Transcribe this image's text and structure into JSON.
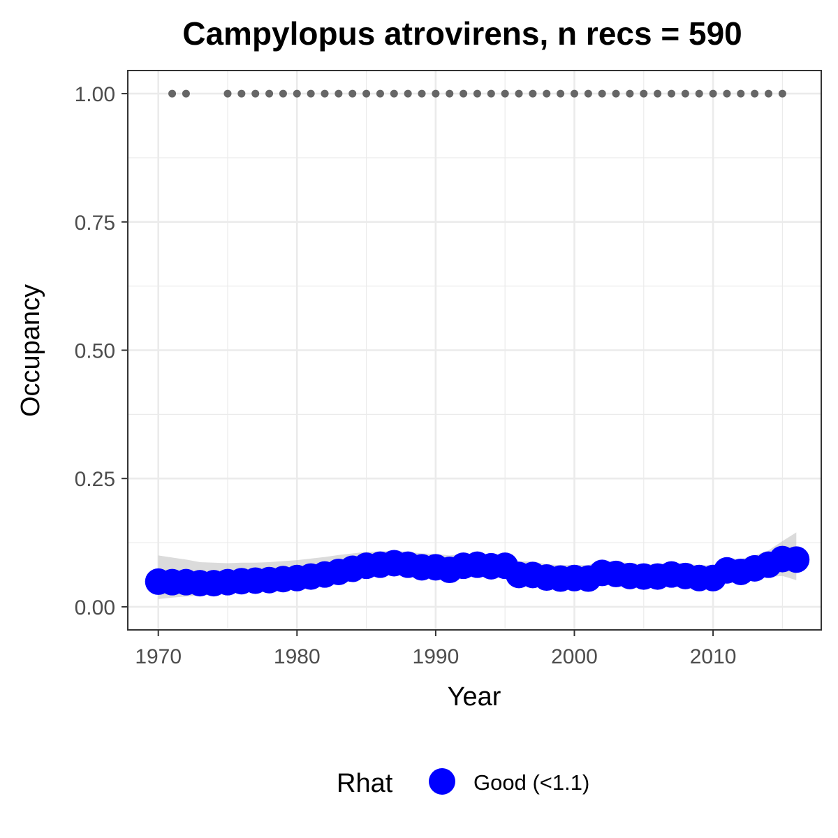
{
  "chart_data": {
    "type": "line",
    "title": "Campylopus atrovirens, n recs = 590",
    "xlabel": "Year",
    "ylabel": "Occupancy",
    "xlim": [
      1967.8,
      2017.8
    ],
    "ylim": [
      -0.045,
      1.045
    ],
    "x_ticks": [
      1970,
      1980,
      1990,
      2000,
      2010
    ],
    "y_ticks": [
      0.0,
      0.25,
      0.5,
      0.75,
      1.0
    ],
    "y_tick_labels": [
      "0.00",
      "0.25",
      "0.50",
      "0.75",
      "1.00"
    ],
    "grid": true,
    "legend": {
      "title": "Rhat",
      "position": "bottom",
      "entries": [
        {
          "label": "Good (<1.1)",
          "color": "#0000ff"
        }
      ]
    },
    "series": [
      {
        "name": "Good (<1.1)",
        "color": "#0000ff",
        "x": [
          1970,
          1971,
          1972,
          1973,
          1974,
          1975,
          1976,
          1977,
          1978,
          1979,
          1980,
          1981,
          1982,
          1983,
          1984,
          1985,
          1986,
          1987,
          1988,
          1989,
          1990,
          1991,
          1992,
          1993,
          1994,
          1995,
          1996,
          1997,
          1998,
          1999,
          2000,
          2001,
          2002,
          2003,
          2004,
          2005,
          2006,
          2007,
          2008,
          2009,
          2010,
          2011,
          2012,
          2013,
          2014,
          2015,
          2016
        ],
        "y": [
          0.049,
          0.048,
          0.048,
          0.046,
          0.046,
          0.048,
          0.05,
          0.051,
          0.052,
          0.054,
          0.056,
          0.059,
          0.063,
          0.068,
          0.074,
          0.08,
          0.082,
          0.085,
          0.082,
          0.077,
          0.077,
          0.072,
          0.08,
          0.082,
          0.079,
          0.08,
          0.062,
          0.062,
          0.057,
          0.055,
          0.056,
          0.055,
          0.066,
          0.064,
          0.06,
          0.059,
          0.059,
          0.063,
          0.06,
          0.056,
          0.056,
          0.071,
          0.068,
          0.075,
          0.082,
          0.093,
          0.092
        ],
        "ci_lower": [
          0.015,
          0.018,
          0.02,
          0.022,
          0.024,
          0.026,
          0.028,
          0.03,
          0.032,
          0.034,
          0.036,
          0.039,
          0.043,
          0.048,
          0.054,
          0.06,
          0.064,
          0.066,
          0.064,
          0.06,
          0.058,
          0.055,
          0.06,
          0.062,
          0.06,
          0.06,
          0.045,
          0.044,
          0.04,
          0.039,
          0.04,
          0.039,
          0.047,
          0.046,
          0.043,
          0.042,
          0.042,
          0.045,
          0.043,
          0.04,
          0.04,
          0.051,
          0.049,
          0.054,
          0.058,
          0.06,
          0.052
        ],
        "ci_upper": [
          0.1,
          0.096,
          0.092,
          0.087,
          0.086,
          0.085,
          0.086,
          0.086,
          0.087,
          0.089,
          0.091,
          0.094,
          0.097,
          0.101,
          0.104,
          0.107,
          0.108,
          0.109,
          0.107,
          0.104,
          0.103,
          0.1,
          0.103,
          0.104,
          0.102,
          0.102,
          0.089,
          0.088,
          0.083,
          0.081,
          0.082,
          0.081,
          0.09,
          0.088,
          0.085,
          0.083,
          0.083,
          0.086,
          0.084,
          0.081,
          0.081,
          0.095,
          0.093,
          0.1,
          0.11,
          0.128,
          0.145
        ]
      },
      {
        "name": "",
        "color": "#666666",
        "x": [
          1971,
          1972,
          1975,
          1976,
          1977,
          1978,
          1979,
          1980,
          1981,
          1982,
          1983,
          1984,
          1985,
          1986,
          1987,
          1988,
          1989,
          1990,
          1991,
          1992,
          1993,
          1994,
          1995,
          1996,
          1997,
          1998,
          1999,
          2000,
          2001,
          2002,
          2003,
          2004,
          2005,
          2006,
          2007,
          2008,
          2009,
          2010,
          2011,
          2012,
          2013,
          2014,
          2015
        ],
        "y": [
          1,
          1,
          1,
          1,
          1,
          1,
          1,
          1,
          1,
          1,
          1,
          1,
          1,
          1,
          1,
          1,
          1,
          1,
          1,
          1,
          1,
          1,
          1,
          1,
          1,
          1,
          1,
          1,
          1,
          1,
          1,
          1,
          1,
          1,
          1,
          1,
          1,
          1,
          1,
          1,
          1,
          1,
          1
        ]
      }
    ]
  }
}
